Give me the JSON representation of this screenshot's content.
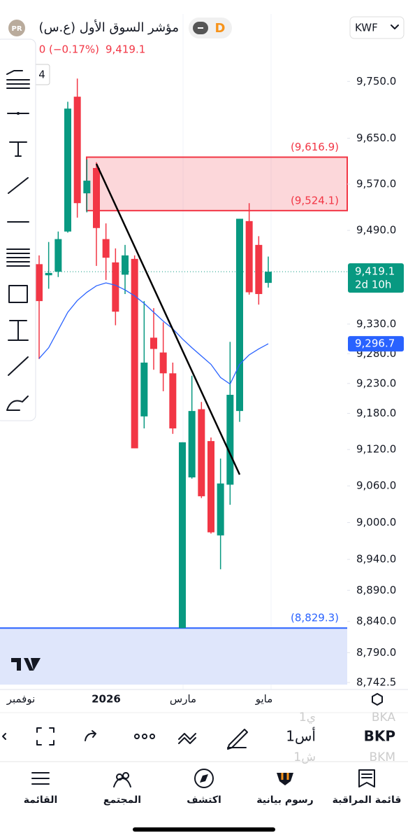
{
  "header": {
    "badge": "PR",
    "title": "مؤشر السوق الأول (ع.س)",
    "interval": "D",
    "currency": "KWF",
    "change": "0 (−0.17%)",
    "price": "9,419.1",
    "indicator_count": "4"
  },
  "chart_data": {
    "type": "candlestick",
    "open": [
      9432,
      9413,
      9419,
      9488,
      9723,
      9554,
      9598,
      9475,
      9435,
      9414,
      9441,
      9175,
      9307,
      9282,
      9247,
      8829.3,
      9074,
      9187,
      9134,
      8979,
      9062,
      9184,
      9506,
      9465,
      9400
    ],
    "high": [
      9447,
      9470,
      9488,
      9714,
      9755,
      9613,
      9608,
      9502,
      9459,
      9465,
      9447,
      9369,
      9357,
      9333,
      9265,
      9132,
      9243,
      9199,
      9140,
      9105,
      9300,
      9510,
      9537,
      9480,
      9445
    ],
    "low": [
      9271,
      9390,
      9410,
      9486,
      9512,
      9521,
      9429,
      9405,
      9328,
      9381,
      9122,
      9155,
      9253,
      9217,
      9146,
      8829.3,
      9072,
      9040,
      8982,
      8924,
      9029,
      9166,
      9380,
      9363,
      9392
    ],
    "close": [
      9369,
      9417,
      9475,
      9702,
      9537,
      9576,
      9494,
      9443,
      9351,
      9447,
      9122,
      9265,
      9288,
      9247,
      9155,
      9132,
      9184,
      9043,
      8984,
      9064,
      9211,
      9510,
      9384,
      9381,
      9419.1
    ],
    "up_color": "#089981",
    "down_color": "#f23645",
    "ma": {
      "color": "#2962ff",
      "values": [
        9272,
        9290,
        9320,
        9350,
        9370,
        9384,
        9395,
        9400,
        9396,
        9388,
        9378,
        9365,
        9350,
        9335,
        9322,
        9305,
        9290,
        9276,
        9262,
        9240,
        9229,
        9262,
        9278,
        9288,
        9296.7
      ]
    },
    "log": true,
    "ylim": [
      8742.5,
      9870
    ],
    "yticks": [
      {
        "value": 9750,
        "label": "9,750.0"
      },
      {
        "value": 9650,
        "label": "9,650.0"
      },
      {
        "value": 9570,
        "label": "9,570.0"
      },
      {
        "value": 9490,
        "label": "9,490.0"
      },
      {
        "value": 9330,
        "label": "9,330.0"
      },
      {
        "value": 9280,
        "label": "9,280.0"
      },
      {
        "value": 9230,
        "label": "9,230.0"
      },
      {
        "value": 9180,
        "label": "9,180.0"
      },
      {
        "value": 9120,
        "label": "9,120.0"
      },
      {
        "value": 9060,
        "label": "9,060.0"
      },
      {
        "value": 9000,
        "label": "9,000.0"
      },
      {
        "value": 8940,
        "label": "8,940.0"
      },
      {
        "value": 8890,
        "label": "8,890.0"
      },
      {
        "value": 8840,
        "label": "8,840.0"
      },
      {
        "value": 8790,
        "label": "8,790.0"
      },
      {
        "value": 8742.5,
        "label": "8,742.5"
      }
    ],
    "x_labels": [
      "نوفمبر",
      "2026",
      "مارس",
      "مايو"
    ],
    "zone": {
      "top": 9616.9,
      "bottom": 9524.1,
      "top_label": "(9,616.9)",
      "bottom_label": "(9,524.1)",
      "color": "#f23645"
    },
    "support": {
      "value": 8829.3,
      "label": "(8,829.3)",
      "color": "#2962ff"
    },
    "last_price": {
      "value": 9419.1,
      "label": "9,419.1",
      "countdown": "2d 10h"
    },
    "ma_price": {
      "value": 9296.7,
      "label": "9,296.7"
    }
  },
  "toolbar": {
    "symbol": "BKP",
    "interval": "1أس",
    "symbol_above": "BKA",
    "interval_above": "1ي",
    "symbol_below": "BKM",
    "interval_below": "1ش"
  },
  "nav": [
    "القائمة",
    "المجتمع",
    "اكتشف",
    "رسوم بيانية",
    "قائمة المراقبة"
  ]
}
